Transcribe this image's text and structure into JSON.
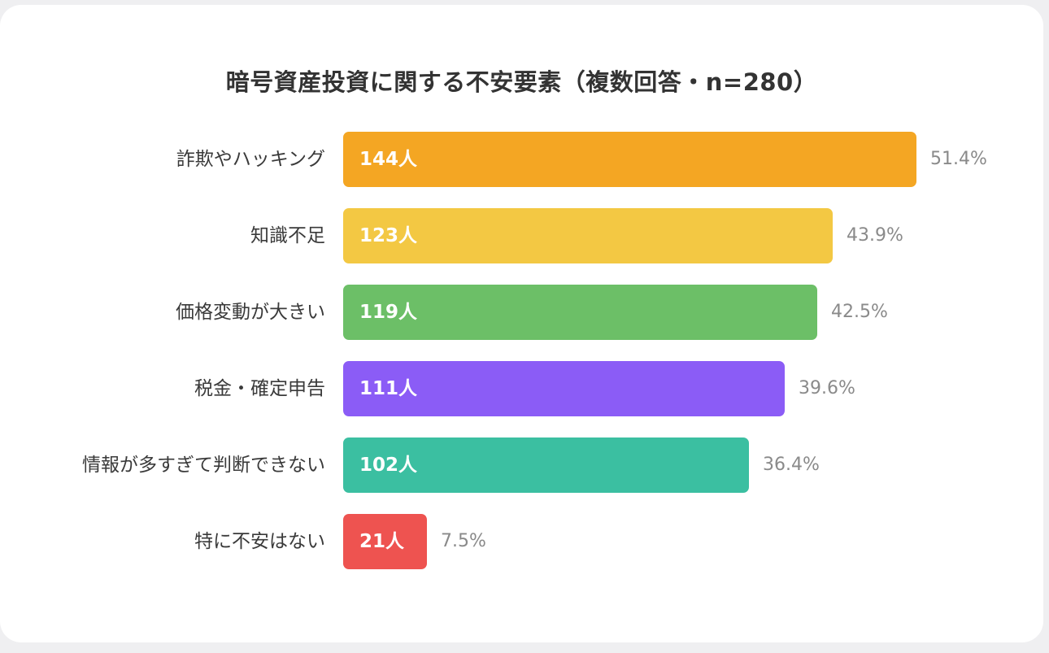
{
  "chart_data": {
    "type": "bar",
    "orientation": "horizontal",
    "title": "暗号資産投資に関する不安要素（複数回答・n=280）",
    "categories": [
      "詐欺やハッキング",
      "知識不足",
      "価格変動が大きい",
      "税金・確定申告",
      "情報が多すぎて判断できない",
      "特に不安はない"
    ],
    "values": [
      144,
      123,
      119,
      111,
      102,
      21
    ],
    "value_labels": [
      "144人",
      "123人",
      "119人",
      "111人",
      "102人",
      "21人"
    ],
    "percent_labels": [
      "51.4%",
      "43.9%",
      "42.5%",
      "39.6%",
      "36.4%",
      "7.5%"
    ],
    "colors": [
      "#f4a623",
      "#f3c843",
      "#6cbf67",
      "#8b5cf6",
      "#3bbfa1",
      "#ee5350"
    ],
    "xlim": [
      0,
      144
    ],
    "grid": false
  }
}
